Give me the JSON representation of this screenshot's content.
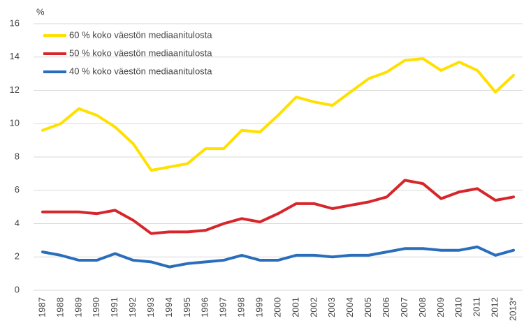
{
  "chart_data": {
    "type": "line",
    "y_unit_label": "%",
    "categories": [
      "1987",
      "1988",
      "1989",
      "1990",
      "1991",
      "1992",
      "1993",
      "1994",
      "1995",
      "1996",
      "1997",
      "1998",
      "1999",
      "2000",
      "2001",
      "2002",
      "2003",
      "2004",
      "2005",
      "2006",
      "2007",
      "2008",
      "2009",
      "2010",
      "2011",
      "2012",
      "2013*"
    ],
    "series": [
      {
        "name": "60 % koko väestön mediaanitulosta",
        "color": "#ffe000",
        "values": [
          9.6,
          10.0,
          10.9,
          10.5,
          9.8,
          8.8,
          7.2,
          7.4,
          7.6,
          8.5,
          8.5,
          9.6,
          9.5,
          10.5,
          11.6,
          11.3,
          11.1,
          11.9,
          12.7,
          13.1,
          13.8,
          13.9,
          13.2,
          13.7,
          13.2,
          11.9,
          12.9
        ]
      },
      {
        "name": "50 % koko väestön mediaanitulosta",
        "color": "#d7262b",
        "values": [
          4.7,
          4.7,
          4.7,
          4.6,
          4.8,
          4.2,
          3.4,
          3.5,
          3.5,
          3.6,
          4.0,
          4.3,
          4.1,
          4.6,
          5.2,
          5.2,
          4.9,
          5.1,
          5.3,
          5.6,
          6.6,
          6.4,
          5.5,
          5.9,
          6.1,
          5.4,
          5.6
        ]
      },
      {
        "name": "40 % koko väestön mediaanitulosta",
        "color": "#2a6ebb",
        "values": [
          2.3,
          2.1,
          1.8,
          1.8,
          2.2,
          1.8,
          1.7,
          1.4,
          1.6,
          1.7,
          1.8,
          2.1,
          1.8,
          1.8,
          2.1,
          2.1,
          2.0,
          2.1,
          2.1,
          2.3,
          2.5,
          2.5,
          2.4,
          2.4,
          2.6,
          2.1,
          2.4
        ]
      }
    ],
    "ylim": [
      0,
      16
    ],
    "yticks": [
      0,
      2,
      4,
      6,
      8,
      10,
      12,
      14,
      16
    ],
    "grid": true,
    "legend": "upper left"
  }
}
